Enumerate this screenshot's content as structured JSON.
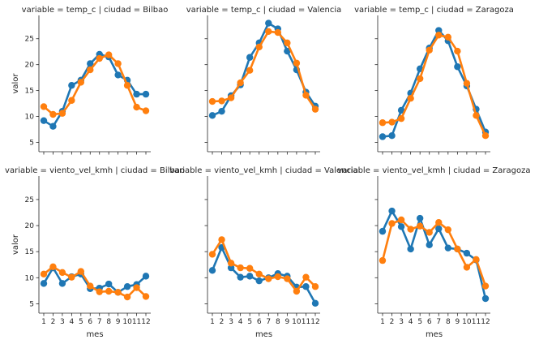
{
  "chart_data": {
    "type": "line",
    "x_label": "mes",
    "y_label": "valor",
    "x_ticks": [
      "1",
      "2",
      "3",
      "4",
      "5",
      "6",
      "7",
      "8",
      "9",
      "10",
      "11",
      "12"
    ],
    "y_ticks": [
      5,
      10,
      15,
      20,
      25
    ],
    "ylim": [
      3.2,
      29.5
    ],
    "x": [
      1,
      2,
      3,
      4,
      5,
      6,
      7,
      8,
      9,
      10,
      11,
      12
    ],
    "colors": {
      "blue": "#1f77b4",
      "orange": "#ff7f0e"
    },
    "panels": [
      {
        "title": "variable = temp_c | ciudad = Bilbao",
        "series": [
          {
            "color": "#1f77b4",
            "values": [
              9.2,
              8.1,
              11.0,
              16.0,
              17.0,
              20.2,
              22.0,
              21.5,
              18.0,
              17.0,
              14.3,
              14.3
            ]
          },
          {
            "color": "#ff7f0e",
            "values": [
              11.9,
              10.4,
              10.6,
              13.1,
              16.6,
              19.0,
              21.2,
              21.9,
              20.2,
              16.0,
              11.8,
              11.1
            ]
          }
        ]
      },
      {
        "title": "variable = temp_c | ciudad = Valencia",
        "series": [
          {
            "color": "#1f77b4",
            "values": [
              10.2,
              11.0,
              14.0,
              16.1,
              21.4,
              24.2,
              28.0,
              26.9,
              22.6,
              19.0,
              14.7,
              12.0
            ]
          },
          {
            "color": "#ff7f0e",
            "values": [
              12.9,
              13.0,
              13.6,
              16.5,
              18.9,
              23.4,
              26.4,
              26.2,
              24.2,
              20.3,
              14.1,
              11.4
            ]
          }
        ]
      },
      {
        "title": "variable = temp_c | ciudad = Zaragoza",
        "series": [
          {
            "color": "#1f77b4",
            "values": [
              6.1,
              6.3,
              11.2,
              14.5,
              19.2,
              23.2,
              26.6,
              24.6,
              19.6,
              15.9,
              11.4,
              7.0
            ]
          },
          {
            "color": "#ff7f0e",
            "values": [
              8.8,
              8.9,
              9.6,
              13.5,
              17.3,
              22.8,
              25.7,
              25.3,
              22.6,
              16.4,
              10.2,
              6.3
            ]
          }
        ]
      },
      {
        "title": "variable = viento_vel_kmh | ciudad = Bilbao",
        "series": [
          {
            "color": "#1f77b4",
            "values": [
              8.9,
              11.9,
              8.9,
              10.2,
              10.7,
              7.9,
              8.0,
              8.8,
              7.2,
              8.3,
              8.7,
              10.3
            ]
          },
          {
            "color": "#ff7f0e",
            "values": [
              10.7,
              12.1,
              11.0,
              10.1,
              11.2,
              8.4,
              7.3,
              7.4,
              7.2,
              6.3,
              8.1,
              6.4
            ]
          }
        ]
      },
      {
        "title": "variable = viento_vel_kmh | ciudad = Valencia",
        "series": [
          {
            "color": "#1f77b4",
            "values": [
              11.4,
              15.8,
              11.9,
              10.1,
              10.3,
              9.4,
              10.0,
              10.8,
              10.3,
              8.2,
              8.3,
              5.1
            ]
          },
          {
            "color": "#ff7f0e",
            "values": [
              14.5,
              17.3,
              12.8,
              11.9,
              11.8,
              10.7,
              9.8,
              10.2,
              9.8,
              7.4,
              10.1,
              8.3
            ]
          }
        ]
      },
      {
        "title": "variable = viento_vel_kmh | ciudad = Zaragoza",
        "series": [
          {
            "color": "#1f77b4",
            "values": [
              18.9,
              22.8,
              19.8,
              15.5,
              21.4,
              16.3,
              19.4,
              15.7,
              15.5,
              14.7,
              13.4,
              6.0
            ]
          },
          {
            "color": "#ff7f0e",
            "values": [
              13.3,
              20.4,
              21.1,
              19.3,
              19.9,
              18.7,
              20.6,
              19.2,
              15.5,
              12.0,
              13.5,
              8.4
            ]
          }
        ]
      }
    ]
  }
}
